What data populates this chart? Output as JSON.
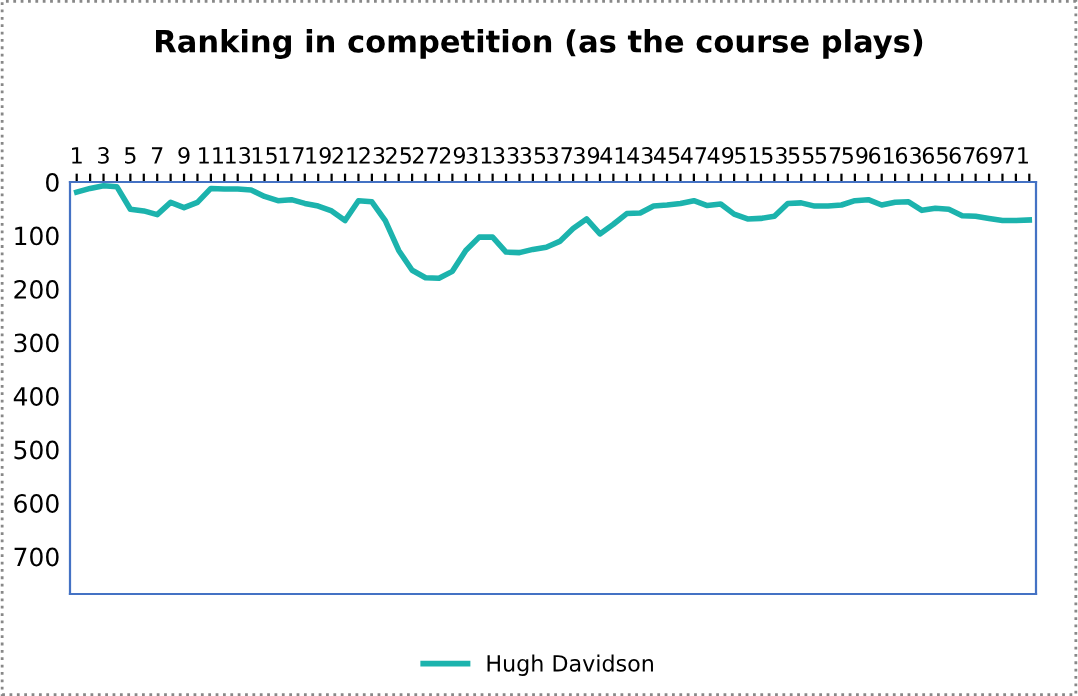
{
  "chart_data": {
    "type": "line",
    "title": "Ranking in competition (as the course plays)",
    "categories": [
      "1",
      null,
      "3",
      null,
      "5",
      null,
      "7",
      null,
      "9",
      null,
      "11",
      null,
      "13",
      null,
      "15",
      null,
      "17",
      null,
      "19",
      null,
      "21",
      null,
      "23",
      null,
      "25",
      null,
      "27",
      null,
      "29",
      null,
      "31",
      null,
      "33",
      null,
      "35",
      null,
      "37",
      null,
      "39",
      null,
      "41",
      null,
      "43",
      null,
      "45",
      null,
      "47",
      null,
      "49",
      null,
      "51",
      null,
      "53",
      null,
      "55",
      null,
      "57",
      null,
      "59",
      null,
      "61",
      null,
      "63",
      null,
      "65",
      null,
      "67",
      null,
      "69",
      null,
      "71",
      null
    ],
    "series": [
      {
        "name": "Hugh Davidson",
        "color": "#1cb3ad",
        "values": [
          19,
          12,
          7,
          9,
          51,
          54,
          61,
          38,
          48,
          38,
          12,
          13,
          13,
          15,
          27,
          35,
          33,
          40,
          45,
          54,
          72,
          35,
          37,
          72,
          128,
          165,
          179,
          180,
          167,
          128,
          103,
          103,
          131,
          132,
          126,
          122,
          111,
          87,
          69,
          97,
          79,
          59,
          58,
          45,
          43,
          40,
          35,
          44,
          41,
          60,
          69,
          68,
          64,
          40,
          39,
          45,
          45,
          43,
          35,
          33,
          43,
          38,
          37,
          53,
          49,
          51,
          63,
          64,
          68,
          72,
          72,
          71
        ]
      }
    ],
    "ylim": [
      770,
      0
    ],
    "yticks": [
      0,
      100,
      200,
      300,
      400,
      500,
      600,
      700
    ],
    "grid": false,
    "legend": "bottom",
    "marker": "none",
    "line_style": "solid"
  }
}
